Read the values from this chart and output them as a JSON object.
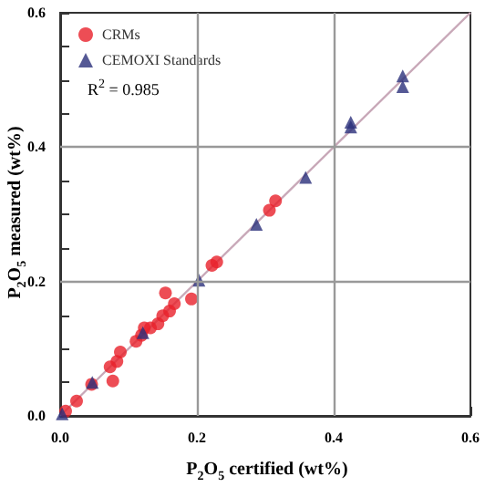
{
  "chart_data": {
    "type": "scatter",
    "xlabel": "P$_{2}$O$_{5}$ certified (wt%)",
    "ylabel": "P$_{2}$O$_{5}$ measured (wt%)",
    "annotations": [
      "R$^{2}$ = 0.985"
    ],
    "xlim": [
      0,
      0.6
    ],
    "ylim": [
      0,
      0.6
    ],
    "xticks": [
      {
        "value": 0,
        "label": "0.0"
      },
      {
        "value": 0.2,
        "label": "0.2"
      },
      {
        "value": 0.4,
        "label": "0.4"
      },
      {
        "value": 0.6,
        "label": "0.6"
      }
    ],
    "yticks": [
      {
        "value": 0,
        "label": "0.0"
      },
      {
        "value": 0.05,
        "label": null
      },
      {
        "value": 0.1,
        "label": null
      },
      {
        "value": 0.15,
        "label": null
      },
      {
        "value": 0.2,
        "label": "0.2"
      },
      {
        "value": 0.25,
        "label": null
      },
      {
        "value": 0.3,
        "label": null
      },
      {
        "value": 0.35,
        "label": null
      },
      {
        "value": 0.4,
        "label": "0.4"
      },
      {
        "value": 0.45,
        "label": null
      },
      {
        "value": 0.5,
        "label": null
      },
      {
        "value": 0.55,
        "label": null
      },
      {
        "value": 0.6,
        "label": "0.6"
      }
    ],
    "grid": true,
    "legend": "top left",
    "series": [
      {
        "name": "CRMs",
        "color": "#e8202a",
        "marker": "circle",
        "x": [
          0.008,
          0.024,
          0.046,
          0.077,
          0.073,
          0.083,
          0.088,
          0.111,
          0.119,
          0.123,
          0.132,
          0.143,
          0.15,
          0.16,
          0.167,
          0.154,
          0.192,
          0.222,
          0.229,
          0.306,
          0.315
        ],
        "values": [
          0.007,
          0.022,
          0.047,
          0.052,
          0.073,
          0.081,
          0.095,
          0.111,
          0.12,
          0.131,
          0.131,
          0.137,
          0.149,
          0.156,
          0.167,
          0.183,
          0.174,
          0.224,
          0.229,
          0.306,
          0.32
        ]
      },
      {
        "name": "CEMOXI Standards",
        "color": "#2a2f7a",
        "marker": "triangle",
        "x": [
          0.003,
          0.047,
          0.121,
          0.203,
          0.287,
          0.359,
          0.425,
          0.425,
          0.501,
          0.501
        ],
        "values": [
          0.003,
          0.05,
          0.124,
          0.202,
          0.285,
          0.355,
          0.43,
          0.437,
          0.506,
          0.49
        ]
      },
      {
        "type": "line",
        "color": "#c8a8b8",
        "marker": "none",
        "x": [
          0,
          0.6
        ],
        "values": [
          0,
          0.6
        ]
      }
    ]
  }
}
